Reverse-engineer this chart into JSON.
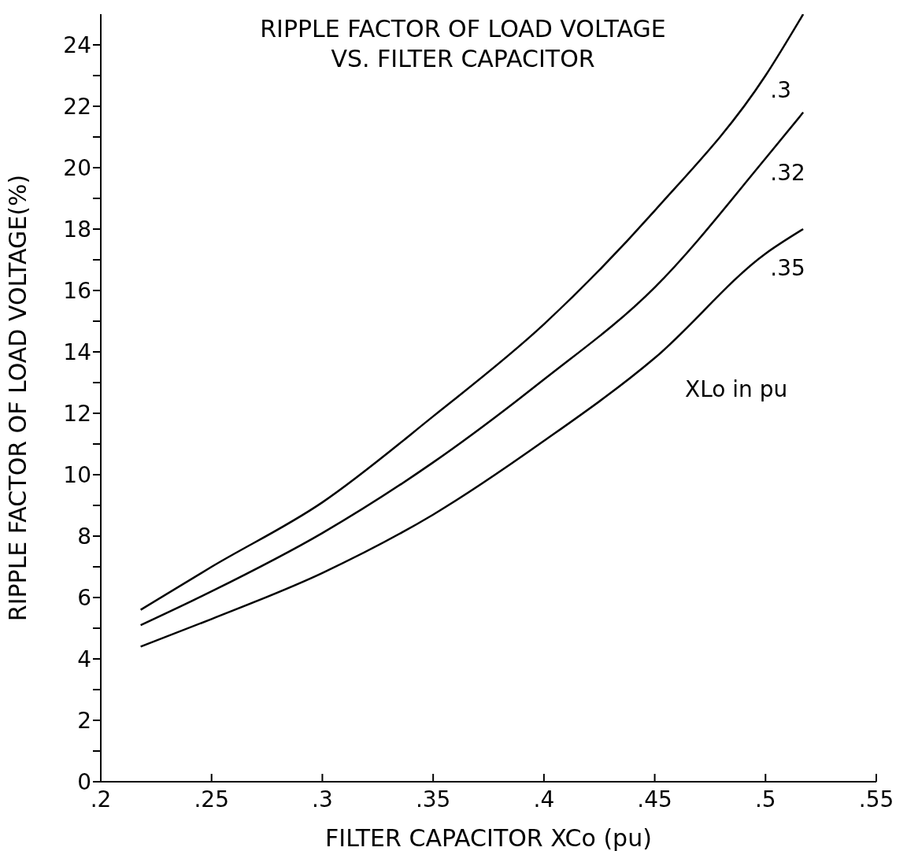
{
  "chart_data": {
    "type": "line",
    "title": "RIPPLE FACTOR OF LOAD VOLTAGE\nVS. FILTER CAPACITOR",
    "xlabel": "FILTER CAPACITOR XCo (pu)",
    "ylabel": "RIPPLE FACTOR OF LOAD VOLTAGE(%)",
    "annotations": [
      "XLo in pu"
    ],
    "x": [
      0.218,
      0.25,
      0.3,
      0.35,
      0.4,
      0.45,
      0.5,
      0.517
    ],
    "series": [
      {
        "name": ".3",
        "color": "#000000",
        "values": [
          5.6,
          7.0,
          9.1,
          11.9,
          14.9,
          18.6,
          23.0,
          25.0
        ]
      },
      {
        "name": ".32",
        "color": "#000000",
        "values": [
          5.1,
          6.2,
          8.1,
          10.4,
          13.1,
          16.1,
          20.3,
          21.8
        ]
      },
      {
        "name": ".35",
        "color": "#000000",
        "values": [
          4.4,
          5.3,
          6.8,
          8.7,
          11.1,
          13.8,
          17.2,
          18.0
        ]
      }
    ],
    "xlim": [
      0.2,
      0.55
    ],
    "xticks": [
      {
        "value": 0.2,
        "label": ".2"
      },
      {
        "value": 0.25,
        "label": ".25"
      },
      {
        "value": 0.3,
        "label": ".3"
      },
      {
        "value": 0.35,
        "label": ".35"
      },
      {
        "value": 0.4,
        "label": ".4"
      },
      {
        "value": 0.45,
        "label": ".45"
      },
      {
        "value": 0.5,
        "label": ".5"
      },
      {
        "value": 0.55,
        "label": ".55"
      }
    ],
    "ylim": [
      0,
      25
    ],
    "yticks": [
      0,
      {
        "value": 1,
        "label": null
      },
      2,
      {
        "value": 3,
        "label": null
      },
      4,
      {
        "value": 5,
        "label": null
      },
      6,
      {
        "value": 7,
        "label": null
      },
      8,
      {
        "value": 9,
        "label": null
      },
      10,
      {
        "value": 11,
        "label": null
      },
      12,
      {
        "value": 13,
        "label": null
      },
      14,
      {
        "value": 15,
        "label": null
      },
      16,
      {
        "value": 17,
        "label": null
      },
      18,
      {
        "value": 19,
        "label": null
      },
      20,
      {
        "value": 21,
        "label": null
      },
      22,
      {
        "value": 23,
        "label": null
      },
      24
    ],
    "grid": false,
    "marker": "none",
    "line_style": "solid"
  }
}
